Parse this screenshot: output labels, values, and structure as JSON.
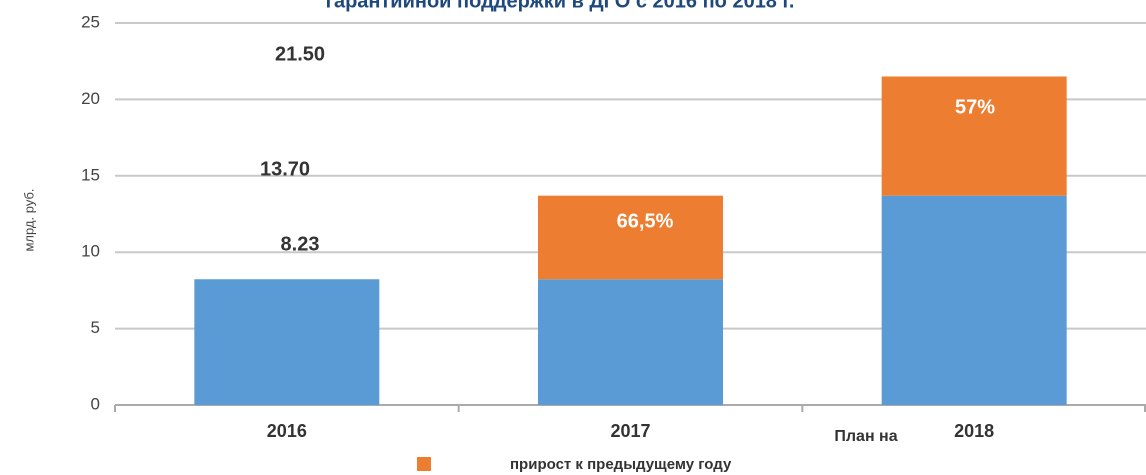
{
  "chart_data": {
    "type": "stacked_bar",
    "title": "гарантийной поддержки в ДГО с 2016 по 2018 г.",
    "y_axis_label": "млрд. руб.",
    "categories": [
      "2016",
      "2017",
      "2018"
    ],
    "series": [
      {
        "color": "#5b9bd5",
        "values": [
          8.23,
          8.23,
          13.7
        ]
      },
      {
        "name": "прирост к предыдущему году",
        "color": "#ed7d31",
        "values": [
          null,
          5.47,
          7.8
        ]
      }
    ],
    "annotations": [
      "21.50",
      "13.70",
      "8.23",
      "66,5%",
      "57%",
      "План на"
    ],
    "ylim": [
      0,
      25
    ],
    "yticks": [
      0,
      5,
      10,
      15,
      20,
      25
    ],
    "grid": true,
    "legend": "bottom"
  }
}
